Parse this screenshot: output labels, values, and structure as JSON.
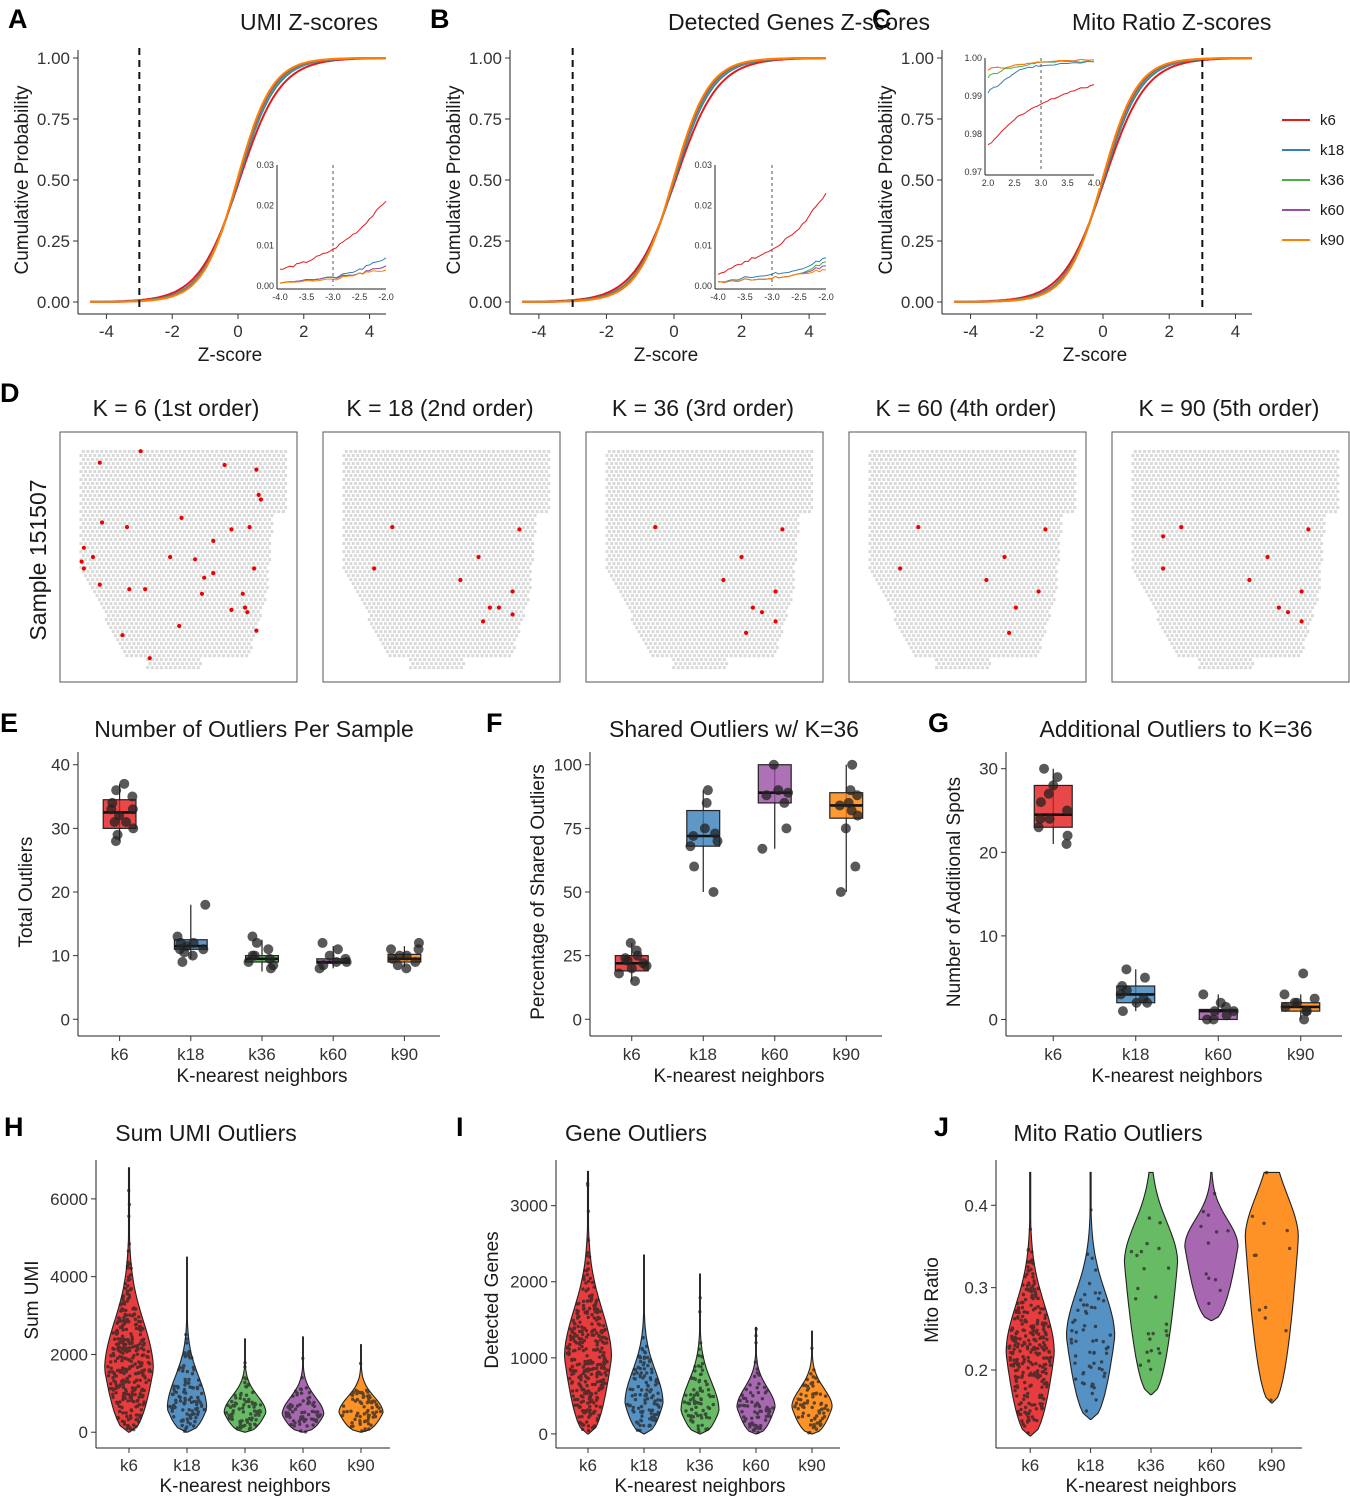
{
  "panel_letters": {
    "a": "A",
    "b": "B",
    "c": "C",
    "d": "D",
    "e": "E",
    "f": "F",
    "g": "G",
    "h": "H",
    "i": "I",
    "j": "J"
  },
  "colors": {
    "k6": "#e41a1c",
    "k18": "#377eb8",
    "k36": "#4daf4a",
    "k60": "#984ea3",
    "k90": "#ff7f00",
    "spot": "#d9d9d9"
  },
  "legend": {
    "entries": [
      "k6",
      "k18",
      "k36",
      "k60",
      "k90"
    ]
  },
  "spatial": {
    "sample_label": "Sample 151507",
    "panels": [
      {
        "title": "K = 6 (1st order)",
        "n_outliers": 32
      },
      {
        "title": "K = 18 (2nd order)",
        "n_outliers": 12
      },
      {
        "title": "K = 36 (3rd order)",
        "n_outliers": 9
      },
      {
        "title": "K = 60 (4th order)",
        "n_outliers": 8
      },
      {
        "title": "K = 90 (5th order)",
        "n_outliers": 10
      }
    ]
  },
  "chart_data": [
    {
      "id": "A",
      "type": "line",
      "title": "UMI Z-scores",
      "xlabel": "Z-score",
      "ylabel": "Cumulative Probability",
      "xlim": [
        -4.5,
        4.5
      ],
      "ylim": [
        0,
        1
      ],
      "xticks": [
        "-4",
        "-2",
        "0",
        "2",
        "4"
      ],
      "yticks": [
        "0.00",
        "0.25",
        "0.50",
        "0.75",
        "1.00"
      ],
      "threshold": -3,
      "series": [
        {
          "name": "k6",
          "sharpness": 1.6
        },
        {
          "name": "k18",
          "sharpness": 1.75
        },
        {
          "name": "k36",
          "sharpness": 1.8
        },
        {
          "name": "k60",
          "sharpness": 1.85
        },
        {
          "name": "k90",
          "sharpness": 1.9
        }
      ],
      "inset": {
        "xlim": [
          -4,
          -2
        ],
        "ylim": [
          0,
          0.03
        ],
        "xticks": [
          "-4.0",
          "-3.5",
          "-3.0",
          "-2.5",
          "-2.0"
        ],
        "yticks": [
          "0.00",
          "0.01",
          "0.02",
          "0.03"
        ],
        "threshold": -3,
        "series": [
          {
            "name": "k6",
            "points": [
              [
                -4,
                0.004
              ],
              [
                -3.5,
                0.006
              ],
              [
                -3,
                0.009
              ],
              [
                -2.5,
                0.014
              ],
              [
                -2,
                0.021
              ]
            ]
          },
          {
            "name": "k18",
            "points": [
              [
                -4,
                0.001
              ],
              [
                -3,
                0.002
              ],
              [
                -2.5,
                0.004
              ],
              [
                -2,
                0.007
              ]
            ]
          },
          {
            "name": "k36",
            "points": [
              [
                -4,
                0.001
              ],
              [
                -3,
                0.002
              ],
              [
                -2.5,
                0.003
              ],
              [
                -2,
                0.005
              ]
            ]
          },
          {
            "name": "k60",
            "points": [
              [
                -4,
                0.001
              ],
              [
                -3,
                0.002
              ],
              [
                -2.5,
                0.003
              ],
              [
                -2,
                0.005
              ]
            ]
          },
          {
            "name": "k90",
            "points": [
              [
                -4,
                0.001
              ],
              [
                -3,
                0.0015
              ],
              [
                -2.5,
                0.003
              ],
              [
                -2,
                0.004
              ]
            ]
          }
        ]
      }
    },
    {
      "id": "B",
      "type": "line",
      "title": "Detected Genes Z-scores",
      "xlabel": "Z-score",
      "ylabel": "Cumulative Probability",
      "xlim": [
        -4.5,
        4.5
      ],
      "ylim": [
        0,
        1
      ],
      "xticks": [
        "-4",
        "-2",
        "0",
        "2",
        "4"
      ],
      "yticks": [
        "0.00",
        "0.25",
        "0.50",
        "0.75",
        "1.00"
      ],
      "threshold": -3,
      "series": [
        {
          "name": "k6",
          "sharpness": 1.6
        },
        {
          "name": "k18",
          "sharpness": 1.75
        },
        {
          "name": "k36",
          "sharpness": 1.8
        },
        {
          "name": "k60",
          "sharpness": 1.85
        },
        {
          "name": "k90",
          "sharpness": 1.9
        }
      ],
      "inset": {
        "xlim": [
          -4,
          -2
        ],
        "ylim": [
          0,
          0.03
        ],
        "xticks": [
          "-4.0",
          "-3.5",
          "-3.0",
          "-2.5",
          "-2.0"
        ],
        "yticks": [
          "0.00",
          "0.01",
          "0.02",
          "0.03"
        ],
        "threshold": -3,
        "series": [
          {
            "name": "k6",
            "points": [
              [
                -4,
                0.003
              ],
              [
                -3.5,
                0.006
              ],
              [
                -3,
                0.009
              ],
              [
                -2.5,
                0.014
              ],
              [
                -2,
                0.023
              ]
            ]
          },
          {
            "name": "k18",
            "points": [
              [
                -4,
                0.001
              ],
              [
                -3,
                0.003
              ],
              [
                -2.5,
                0.004
              ],
              [
                -2,
                0.007
              ]
            ]
          },
          {
            "name": "k36",
            "points": [
              [
                -4,
                0.001
              ],
              [
                -3,
                0.002
              ],
              [
                -2.5,
                0.003
              ],
              [
                -2,
                0.006
              ]
            ]
          },
          {
            "name": "k60",
            "points": [
              [
                -4,
                0.001
              ],
              [
                -3,
                0.002
              ],
              [
                -2.5,
                0.003
              ],
              [
                -2,
                0.005
              ]
            ]
          },
          {
            "name": "k90",
            "points": [
              [
                -4,
                0.001
              ],
              [
                -3,
                0.002
              ],
              [
                -2.5,
                0.003
              ],
              [
                -2,
                0.004
              ]
            ]
          }
        ]
      }
    },
    {
      "id": "C",
      "type": "line",
      "title": "Mito Ratio Z-scores",
      "xlabel": "Z-score",
      "ylabel": "Cumulative Probability",
      "xlim": [
        -4.5,
        4.5
      ],
      "ylim": [
        0,
        1
      ],
      "xticks": [
        "-4",
        "-2",
        "0",
        "2",
        "4"
      ],
      "yticks": [
        "0.00",
        "0.25",
        "0.50",
        "0.75",
        "1.00"
      ],
      "threshold": 3,
      "series": [
        {
          "name": "k6",
          "sharpness": 1.6
        },
        {
          "name": "k18",
          "sharpness": 1.75
        },
        {
          "name": "k36",
          "sharpness": 1.8
        },
        {
          "name": "k60",
          "sharpness": 1.85
        },
        {
          "name": "k90",
          "sharpness": 1.9
        }
      ],
      "inset": {
        "xlim": [
          2,
          4
        ],
        "ylim": [
          0.97,
          1.0
        ],
        "xticks": [
          "2.0",
          "2.5",
          "3.0",
          "3.5",
          "4.0"
        ],
        "yticks": [
          "0.97",
          "0.98",
          "0.99",
          "1.00"
        ],
        "threshold": 3,
        "series": [
          {
            "name": "k6",
            "points": [
              [
                2,
                0.977
              ],
              [
                2.5,
                0.984
              ],
              [
                3,
                0.988
              ],
              [
                3.5,
                0.991
              ],
              [
                4,
                0.993
              ]
            ]
          },
          {
            "name": "k18",
            "points": [
              [
                2,
                0.991
              ],
              [
                2.3,
                0.994
              ],
              [
                2.6,
                0.997
              ],
              [
                3,
                0.998
              ],
              [
                4,
                0.999
              ]
            ]
          },
          {
            "name": "k36",
            "points": [
              [
                2,
                0.995
              ],
              [
                2.3,
                0.997
              ],
              [
                2.7,
                0.998
              ],
              [
                3,
                0.999
              ],
              [
                4,
                0.999
              ]
            ]
          },
          {
            "name": "k60",
            "points": [
              [
                2,
                0.997
              ],
              [
                2.5,
                0.998
              ],
              [
                3,
                0.999
              ],
              [
                4,
                0.9995
              ]
            ]
          },
          {
            "name": "k90",
            "points": [
              [
                2,
                0.997
              ],
              [
                2.5,
                0.998
              ],
              [
                3,
                0.999
              ],
              [
                4,
                0.9995
              ]
            ]
          }
        ]
      }
    },
    {
      "id": "E",
      "type": "box",
      "title": "Number of Outliers Per Sample",
      "xlabel": "K-nearest neighbors",
      "ylabel": "Total Outliers",
      "ylim": [
        -2,
        42
      ],
      "yticks": [
        0,
        10,
        20,
        30,
        40
      ],
      "categories": [
        "k6",
        "k18",
        "k36",
        "k60",
        "k90"
      ],
      "boxes": [
        {
          "q1": 30,
          "med": 32.5,
          "q3": 34.5,
          "lo": 28,
          "hi": 37
        },
        {
          "q1": 11,
          "med": 11.5,
          "q3": 12.5,
          "lo": 9.5,
          "hi": 18
        },
        {
          "q1": 9,
          "med": 9.5,
          "q3": 10,
          "lo": 7.5,
          "hi": 12.5
        },
        {
          "q1": 8.8,
          "med": 9,
          "q3": 9.5,
          "lo": 8,
          "hi": 11.5
        },
        {
          "q1": 9,
          "med": 9.5,
          "q3": 10.2,
          "lo": 8.2,
          "hi": 11.5
        }
      ],
      "points": [
        [
          31,
          33,
          35,
          36,
          37,
          34,
          30,
          29,
          28,
          32,
          33,
          31
        ],
        [
          10,
          11,
          12,
          13,
          18,
          9,
          11.5,
          12,
          10.5,
          11
        ],
        [
          8,
          9,
          10,
          11,
          12,
          13,
          9.5,
          8.5,
          10
        ],
        [
          8,
          9,
          9.5,
          10,
          11,
          12,
          8.5,
          9
        ],
        [
          8.5,
          9,
          10,
          11,
          12,
          9.5,
          8,
          10,
          11
        ]
      ]
    },
    {
      "id": "F",
      "type": "box",
      "title": "Shared Outliers w/ K=36",
      "xlabel": "K-nearest neighbors",
      "ylabel": "Percentage of Shared Outliers",
      "ylim": [
        -5,
        105
      ],
      "yticks": [
        0,
        25,
        50,
        75,
        100
      ],
      "categories": [
        "k6",
        "k18",
        "k60",
        "k90"
      ],
      "boxes": [
        {
          "q1": 19,
          "med": 22,
          "q3": 25,
          "lo": 15,
          "hi": 30
        },
        {
          "q1": 68,
          "med": 72,
          "q3": 82,
          "lo": 50,
          "hi": 90
        },
        {
          "q1": 85,
          "med": 89,
          "q3": 100,
          "lo": 67,
          "hi": 100
        },
        {
          "q1": 79,
          "med": 84,
          "q3": 89,
          "lo": 50,
          "hi": 100
        }
      ],
      "points": [
        [
          15,
          18,
          20,
          22,
          24,
          25,
          27,
          30,
          21,
          23
        ],
        [
          50,
          70,
          72,
          75,
          85,
          90,
          68,
          60,
          73
        ],
        [
          67,
          75,
          85,
          88,
          89,
          90,
          100
        ],
        [
          50,
          60,
          75,
          80,
          84,
          85,
          88,
          90,
          100,
          82
        ]
      ]
    },
    {
      "id": "G",
      "type": "box",
      "title": "Additional Outliers to K=36",
      "xlabel": "K-nearest neighbors",
      "ylabel": "Number of Additional Spots",
      "ylim": [
        -1.5,
        32
      ],
      "yticks": [
        0,
        10,
        20,
        30
      ],
      "categories": [
        "k6",
        "k18",
        "k60",
        "k90"
      ],
      "boxes": [
        {
          "q1": 23,
          "med": 24.5,
          "q3": 28,
          "lo": 21,
          "hi": 30
        },
        {
          "q1": 2,
          "med": 3,
          "q3": 4,
          "lo": 1,
          "hi": 6
        },
        {
          "q1": 0,
          "med": 1,
          "q3": 1.2,
          "lo": 0,
          "hi": 3
        },
        {
          "q1": 1,
          "med": 1.5,
          "q3": 2,
          "lo": 0,
          "hi": 3
        }
      ],
      "points": [
        [
          21,
          22,
          23,
          24,
          25,
          26,
          27,
          28,
          29,
          30,
          24
        ],
        [
          1,
          2,
          2.5,
          3,
          3.5,
          4,
          5,
          6,
          2
        ],
        [
          0,
          0.5,
          1,
          1.5,
          2,
          3,
          0,
          1
        ],
        [
          0,
          1,
          1.5,
          2,
          2.5,
          3,
          5.5,
          1,
          2
        ]
      ]
    },
    {
      "id": "H",
      "type": "violin",
      "title": "Sum UMI Outliers",
      "xlabel": "K-nearest neighbors",
      "ylabel": "Sum UMI",
      "ylim": [
        -200,
        7000
      ],
      "yticks": [
        0,
        2000,
        4000,
        6000
      ],
      "categories": [
        "k6",
        "k18",
        "k36",
        "k60",
        "k90"
      ],
      "violins": [
        {
          "lo": 0,
          "hi": 6800,
          "mode": 1600,
          "n": 320,
          "width": 0.42
        },
        {
          "lo": 0,
          "hi": 4500,
          "mode": 600,
          "n": 110,
          "width": 0.34
        },
        {
          "lo": 0,
          "hi": 2400,
          "mode": 500,
          "n": 80,
          "width": 0.36
        },
        {
          "lo": 0,
          "hi": 2450,
          "mode": 450,
          "n": 70,
          "width": 0.36
        },
        {
          "lo": 0,
          "hi": 2250,
          "mode": 500,
          "n": 75,
          "width": 0.38
        }
      ]
    },
    {
      "id": "I",
      "type": "violin",
      "title": "Gene Outliers",
      "xlabel": "K-nearest neighbors",
      "ylabel": "Detected Genes",
      "ylim": [
        -80,
        3600
      ],
      "yticks": [
        0,
        1000,
        2000,
        3000
      ],
      "categories": [
        "k6",
        "k18",
        "k36",
        "k60",
        "k90"
      ],
      "violins": [
        {
          "lo": 0,
          "hi": 3450,
          "mode": 1000,
          "n": 320,
          "width": 0.42
        },
        {
          "lo": 0,
          "hi": 2350,
          "mode": 400,
          "n": 110,
          "width": 0.34
        },
        {
          "lo": 0,
          "hi": 2100,
          "mode": 300,
          "n": 80,
          "width": 0.34
        },
        {
          "lo": 0,
          "hi": 1400,
          "mode": 350,
          "n": 70,
          "width": 0.34
        },
        {
          "lo": 0,
          "hi": 1350,
          "mode": 350,
          "n": 75,
          "width": 0.36
        }
      ]
    },
    {
      "id": "J",
      "type": "violin",
      "title": "Mito Ratio Outliers",
      "xlabel": "K-nearest neighbors",
      "ylabel": "Mito Ratio",
      "ylim": [
        0.115,
        0.455
      ],
      "yticks": [
        0.2,
        0.3,
        0.4
      ],
      "categories": [
        "k6",
        "k18",
        "k36",
        "k60",
        "k90"
      ],
      "violins": [
        {
          "lo": 0.12,
          "hi": 0.44,
          "mode": 0.22,
          "n": 280,
          "width": 0.4
        },
        {
          "lo": 0.14,
          "hi": 0.44,
          "mode": 0.24,
          "n": 60,
          "width": 0.4
        },
        {
          "lo": 0.17,
          "hi": 0.44,
          "mode": 0.33,
          "n": 25,
          "width": 0.44
        },
        {
          "lo": 0.26,
          "hi": 0.44,
          "mode": 0.35,
          "n": 12,
          "width": 0.44
        },
        {
          "lo": 0.16,
          "hi": 0.44,
          "mode": 0.36,
          "n": 12,
          "width": 0.44
        }
      ]
    }
  ]
}
